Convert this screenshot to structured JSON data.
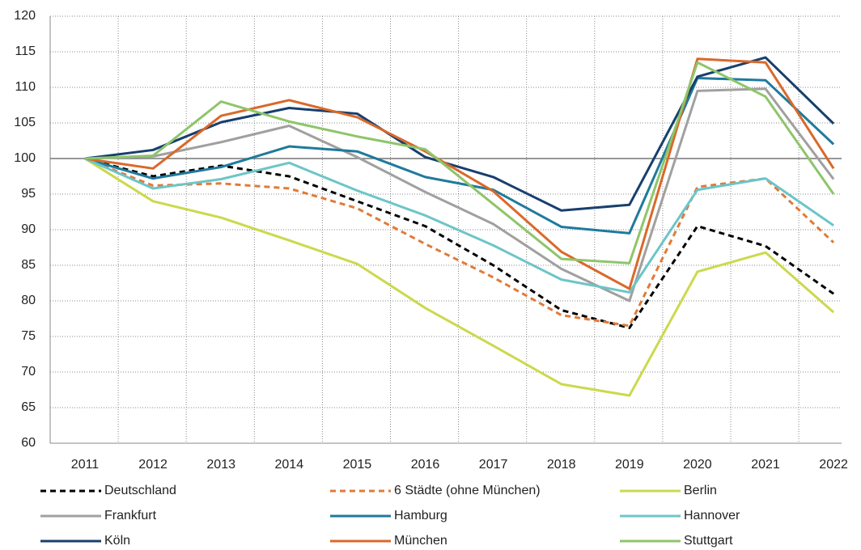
{
  "chart_data": {
    "type": "line",
    "x": [
      "2011",
      "2012",
      "2013",
      "2014",
      "2015",
      "2016",
      "2017",
      "2018",
      "2019",
      "2020",
      "2021",
      "2022"
    ],
    "ylim": [
      60,
      120
    ],
    "yticks": [
      60,
      65,
      70,
      75,
      80,
      85,
      90,
      95,
      100,
      105,
      110,
      115,
      120
    ],
    "grid": true,
    "reference_line": 100,
    "series": [
      {
        "name": "Deutschland",
        "color": "#000000",
        "dashed": true,
        "values": [
          100,
          97.5,
          99,
          97.5,
          94,
          90.5,
          85,
          78.7,
          76.2,
          90.5,
          87.7,
          81
        ]
      },
      {
        "name": "6 Städte (ohne München)",
        "color": "#e07b39",
        "dashed": true,
        "values": [
          100,
          96.2,
          96.5,
          95.8,
          93,
          88,
          83.3,
          78,
          76.5,
          96,
          97.2,
          88.2
        ]
      },
      {
        "name": "Berlin",
        "color": "#cbd94c",
        "dashed": false,
        "values": [
          100,
          94,
          91.7,
          88.5,
          85.2,
          79,
          73.7,
          68.3,
          66.7,
          84.1,
          86.8,
          78.4
        ]
      },
      {
        "name": "Frankfurt",
        "color": "#a0a0a0",
        "dashed": false,
        "values": [
          100,
          100.3,
          102.3,
          104.6,
          100.2,
          95.3,
          90.8,
          84.5,
          80,
          109.5,
          109.8,
          97.1
        ]
      },
      {
        "name": "Hamburg",
        "color": "#1f7a9c",
        "dashed": false,
        "values": [
          100,
          97.2,
          98.8,
          101.7,
          101,
          97.4,
          95.6,
          90.4,
          89.5,
          111.3,
          111,
          102
        ]
      },
      {
        "name": "Hannover",
        "color": "#6cc5c8",
        "dashed": false,
        "values": [
          100,
          95.8,
          97.1,
          99.4,
          95.5,
          92,
          87.8,
          83,
          81.2,
          95.6,
          97.2,
          90.6
        ]
      },
      {
        "name": "Köln",
        "color": "#173f6e",
        "dashed": false,
        "values": [
          100,
          101.2,
          105.1,
          107.1,
          106.3,
          100.2,
          97.4,
          92.7,
          93.5,
          111.5,
          114.2,
          104.9
        ]
      },
      {
        "name": "München",
        "color": "#d9692a",
        "dashed": false,
        "values": [
          100,
          98.6,
          106,
          108.2,
          105.8,
          101,
          95.4,
          86.9,
          81.7,
          114,
          113.5,
          98.6
        ]
      },
      {
        "name": "Stuttgart",
        "color": "#8ec56a",
        "dashed": false,
        "values": [
          100,
          100.4,
          108,
          105.2,
          103.1,
          101.3,
          93.6,
          85.9,
          85.3,
          113.5,
          108.7,
          95
        ]
      }
    ]
  }
}
